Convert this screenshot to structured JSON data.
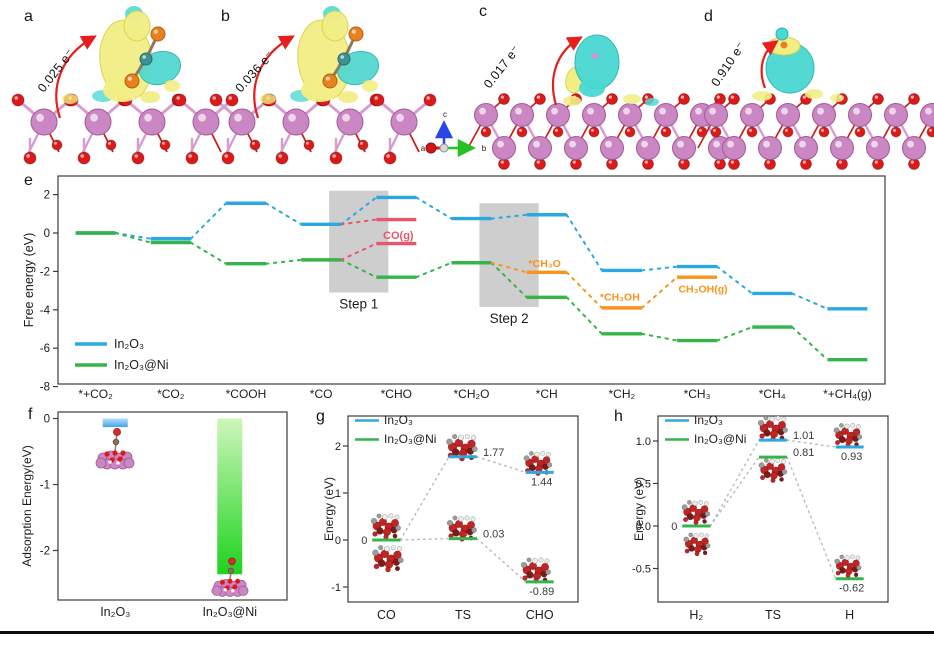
{
  "panel_letters": [
    "a",
    "b",
    "c",
    "d",
    "e",
    "f",
    "g",
    "h"
  ],
  "panels_top": [
    {
      "letter": "a",
      "transfer_label": "0.025 e⁻"
    },
    {
      "letter": "b",
      "transfer_label": "0.036 e⁻"
    },
    {
      "letter": "c",
      "transfer_label": "0.017 e⁻"
    },
    {
      "letter": "d",
      "transfer_label": "0.910 e⁻"
    }
  ],
  "axis_indicator": {
    "up": "c",
    "right": "b",
    "left": "a"
  },
  "colors": {
    "in2o3_blue": "#2ba8e0",
    "in2o3_ni_green": "#35b44a",
    "co_gas_red": "#e8566b",
    "methanol_orange": "#f7941d",
    "arrow_red": "#e61e1e",
    "step_box_gray": "#cbcbcb"
  },
  "chart_data": [
    {
      "panel": "e",
      "type": "line",
      "subtype": "reaction-energy-levels",
      "ylabel": "Free energy (eV)",
      "yticks": [
        "2",
        "0",
        "-2",
        "-4",
        "-6",
        "-8"
      ],
      "ylim": [
        -8.3,
        2.9
      ],
      "categories": [
        "*+CO₂",
        "*CO₂",
        "*COOH",
        "*CO",
        "*CHO",
        "*CH₂O",
        "*CH",
        "*CH₂",
        "*CH₃",
        "*CH₄",
        "*+CH₄(g)"
      ],
      "series": [
        {
          "name": "In₂O₃",
          "color": "#2ba8e0",
          "values": [
            0,
            -0.3,
            1.55,
            0.45,
            1.85,
            0.75,
            0.95,
            -1.95,
            -1.75,
            -3.15,
            -3.95
          ]
        },
        {
          "name": "In₂O₃@Ni",
          "color": "#35b44a",
          "values": [
            0,
            -0.5,
            -1.6,
            -1.4,
            -2.3,
            -1.55,
            -3.35,
            -5.25,
            -5.6,
            -4.9,
            -6.6
          ]
        }
      ],
      "branches": [
        {
          "name": "CO(g) from In₂O₃",
          "color": "#e8566b",
          "points": [
            {
              "cat": "*CO",
              "E": 0.45,
              "level": false
            },
            {
              "cat": "*CHO",
              "E": 0.7,
              "level": true
            }
          ]
        },
        {
          "name": "CO(g) from In₂O₃@Ni",
          "color": "#e8566b",
          "points": [
            {
              "cat": "*CO",
              "E": -1.4,
              "level": false
            },
            {
              "cat": "*CHO",
              "E": -0.55,
              "level": true
            }
          ]
        },
        {
          "name": "CH₃OH pathway",
          "color": "#f7941d",
          "points": [
            {
              "cat": "*CH₂O",
              "E": -1.55,
              "level": false
            },
            {
              "cat": "*CH",
              "E": -2.05,
              "level": true
            },
            {
              "cat": "*CH₂",
              "E": -3.9,
              "level": true
            },
            {
              "cat": "*CH₃",
              "E": -2.3,
              "level": true
            }
          ]
        }
      ],
      "annotations": [
        {
          "text": "CO(g)",
          "cat": "*CHO",
          "E": -0.1,
          "dx": 2,
          "color": "#e8566b",
          "size": 11
        },
        {
          "text": "*CH₃O",
          "cat": "*CH",
          "E": -1.55,
          "dx": -2,
          "color": "#f7941d",
          "size": 10.5
        },
        {
          "text": "*CH₃OH",
          "cat": "*CH₂",
          "E": -3.3,
          "dx": -2,
          "color": "#f7941d",
          "size": 10.5
        },
        {
          "text": "CH₃OH(g)",
          "cat": "*CH₃",
          "E": -2.9,
          "dx": 6,
          "color": "#f7941d",
          "size": 10.5
        }
      ],
      "steps": [
        {
          "label": "Step 1",
          "from": "*CO",
          "to": "*CHO",
          "top": 2.2,
          "bottom": -3.1
        },
        {
          "label": "Step 2",
          "from": "*CH₂O",
          "to": "*CH",
          "top": 1.55,
          "bottom": -3.85
        }
      ],
      "legend": [
        "In₂O₃",
        "In₂O₃@Ni"
      ]
    },
    {
      "panel": "f",
      "type": "bar",
      "ylabel": "Adsorption Energy(eV)",
      "yticks": [
        "0",
        "-1",
        "-2"
      ],
      "ylim": [
        -2.8,
        0.1
      ],
      "categories": [
        "In₂O₃",
        "In₂O₃@Ni"
      ],
      "values": [
        -0.13,
        -2.36
      ],
      "bar_gradients": [
        [
          "#b5e0f8",
          "#3da5e6"
        ],
        [
          "#cdf6bb",
          "#1ed31e"
        ]
      ]
    },
    {
      "panel": "g",
      "type": "line",
      "subtype": "reaction-energy-levels",
      "ylabel": "Energy (eV)",
      "yticks": [
        "2",
        "1",
        "0",
        "-1"
      ],
      "ylim": [
        -1.3,
        2.6
      ],
      "categories": [
        "CO",
        "TS",
        "CHO"
      ],
      "series": [
        {
          "name": "In₂O₃",
          "color": "#2ba8e0",
          "values": [
            0,
            1.77,
            1.44
          ]
        },
        {
          "name": "In₂O₃@Ni",
          "color": "#35b44a",
          "values": [
            0,
            0.03,
            -0.89
          ]
        }
      ],
      "point_labels": [
        {
          "text": "0",
          "cat": "CO",
          "E": 0,
          "pos": "left"
        },
        {
          "text": "1.77",
          "cat": "TS",
          "E": 1.77,
          "pos": "right"
        },
        {
          "text": "0.03",
          "cat": "TS",
          "E": 0.03,
          "pos": "right"
        },
        {
          "text": "1.44",
          "cat": "CHO",
          "E": 1.44,
          "pos": "below"
        },
        {
          "text": "-0.89",
          "cat": "CHO",
          "E": -0.89,
          "pos": "below"
        }
      ],
      "legend": [
        "In₂O₃",
        "In₂O₃@Ni"
      ]
    },
    {
      "panel": "h",
      "type": "line",
      "subtype": "reaction-energy-levels",
      "ylabel": "Energy (eV)",
      "yticks": [
        "1.0",
        "0.5",
        "0.0",
        "-0.5"
      ],
      "ylim": [
        -0.9,
        1.3
      ],
      "categories": [
        "H₂",
        "TS",
        "H"
      ],
      "series": [
        {
          "name": "In₂O₃",
          "color": "#2ba8e0",
          "values": [
            0,
            1.01,
            0.93
          ]
        },
        {
          "name": "In₂O₃@Ni",
          "color": "#35b44a",
          "values": [
            0,
            0.81,
            -0.62
          ]
        }
      ],
      "point_labels": [
        {
          "text": "0",
          "cat": "H₂",
          "E": 0,
          "pos": "left"
        },
        {
          "text": "1.01",
          "cat": "TS",
          "E": 1.01,
          "pos": "right"
        },
        {
          "text": "0.81",
          "cat": "TS",
          "E": 0.81,
          "pos": "right"
        },
        {
          "text": "0.93",
          "cat": "H",
          "E": 0.93,
          "pos": "below"
        },
        {
          "text": "-0.62",
          "cat": "H",
          "E": -0.62,
          "pos": "below"
        }
      ],
      "legend": [
        "In₂O₃",
        "In₂O₃@Ni"
      ]
    }
  ]
}
